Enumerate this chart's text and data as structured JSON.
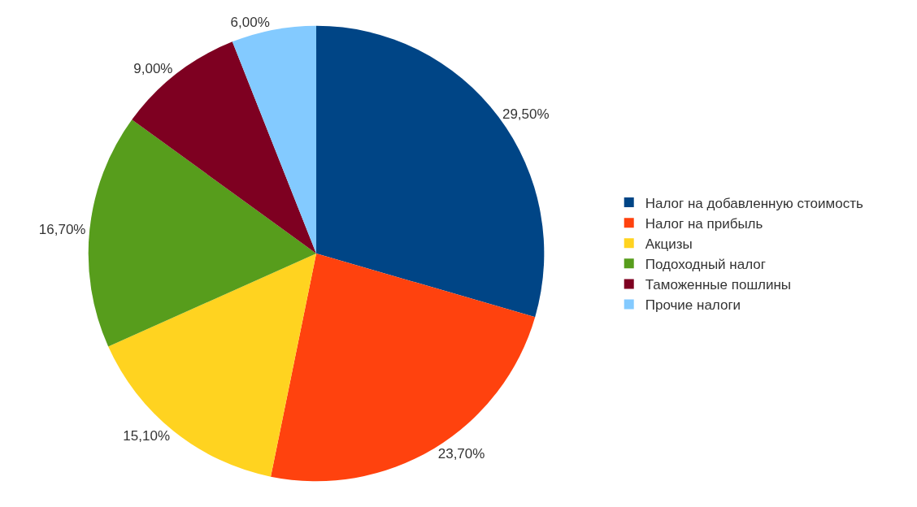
{
  "chart_data": {
    "type": "pie",
    "categories": [
      "Налог на добавленную стоимость",
      "Налог на прибыль",
      "Акцизы",
      "Подоходный налог",
      "Таможенные пошлины",
      "Прочие налоги"
    ],
    "values": [
      29.5,
      23.7,
      15.1,
      16.7,
      9.0,
      6.0
    ],
    "value_labels": [
      "29,50%",
      "23,70%",
      "15,10%",
      "16,70%",
      "9,00%",
      "6,00%"
    ],
    "colors": [
      "#004586",
      "#ff420e",
      "#ffd320",
      "#579d1c",
      "#7e0021",
      "#83caff"
    ],
    "legend": "right"
  }
}
